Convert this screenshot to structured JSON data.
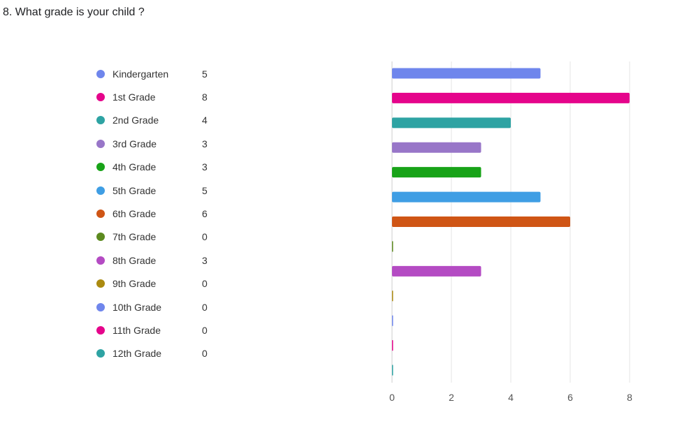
{
  "question": {
    "title": "8. What grade is your child ?"
  },
  "chart_data": {
    "type": "bar",
    "orientation": "horizontal",
    "categories": [
      "Kindergarten",
      "1st Grade",
      "2nd Grade",
      "3rd Grade",
      "4th Grade",
      "5th Grade",
      "6th Grade",
      "7th Grade",
      "8th Grade",
      "9th Grade",
      "10th Grade",
      "11th Grade",
      "12th Grade"
    ],
    "values": [
      5,
      8,
      4,
      3,
      3,
      5,
      6,
      0,
      3,
      0,
      0,
      0,
      0
    ],
    "colors": [
      "#6f86ec",
      "#e5048b",
      "#2ea3a3",
      "#9876c8",
      "#18a318",
      "#3f9ee4",
      "#cf5515",
      "#5c8a1f",
      "#b44bc3",
      "#ab8a10",
      "#6f86ec",
      "#e5048b",
      "#2ea3a3"
    ],
    "xlim": [
      0,
      8
    ],
    "xticks": [
      0,
      2,
      4,
      6,
      8
    ],
    "grid": true,
    "legend": "left"
  }
}
